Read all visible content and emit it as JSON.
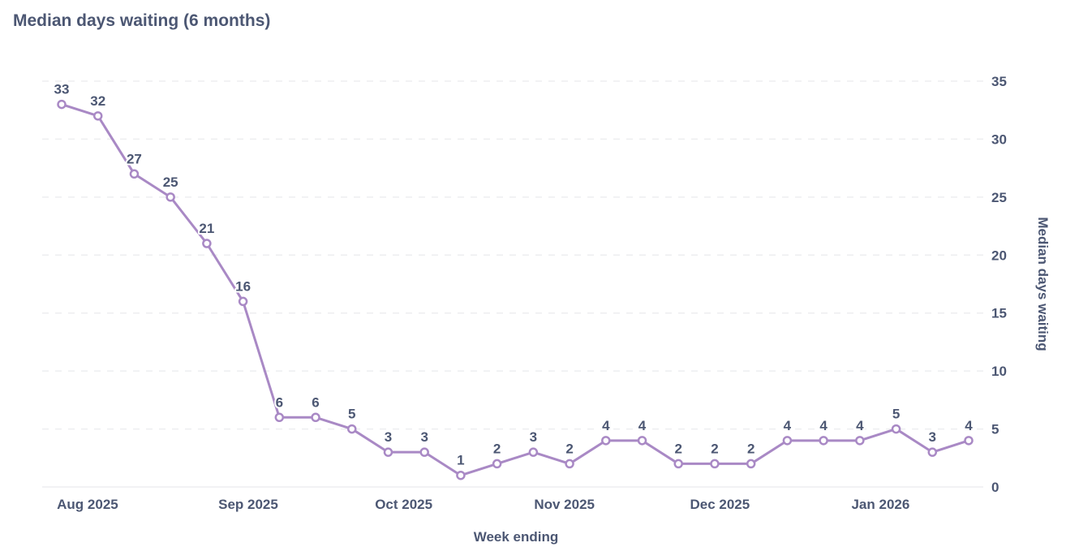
{
  "title": "Median days waiting (6 months)",
  "chart_data": {
    "type": "line",
    "title": "Median days waiting (6 months)",
    "xlabel": "Week ending",
    "ylabel": "Median days waiting",
    "y_axis_side": "right",
    "ylim": [
      0,
      35
    ],
    "yticks": [
      0,
      5,
      10,
      15,
      20,
      25,
      30,
      35
    ],
    "xticks": [
      {
        "date": "2025-08-01",
        "label": "Aug 2025"
      },
      {
        "date": "2025-09-01",
        "label": "Sep 2025"
      },
      {
        "date": "2025-10-01",
        "label": "Oct 2025"
      },
      {
        "date": "2025-11-01",
        "label": "Nov 2025"
      },
      {
        "date": "2025-12-01",
        "label": "Dec 2025"
      },
      {
        "date": "2026-01-01",
        "label": "Jan 2026"
      }
    ],
    "grid": "horizontal dashed",
    "data_labels": true,
    "color": "#A989C5",
    "x": [
      "2025-07-27",
      "2025-08-03",
      "2025-08-10",
      "2025-08-17",
      "2025-08-24",
      "2025-08-31",
      "2025-09-07",
      "2025-09-14",
      "2025-09-21",
      "2025-09-28",
      "2025-10-05",
      "2025-10-12",
      "2025-10-19",
      "2025-10-26",
      "2025-11-02",
      "2025-11-09",
      "2025-11-16",
      "2025-11-23",
      "2025-11-30",
      "2025-12-07",
      "2025-12-14",
      "2025-12-21",
      "2025-12-28",
      "2026-01-04",
      "2026-01-11",
      "2026-01-18"
    ],
    "values": [
      33,
      32,
      27,
      25,
      21,
      16,
      6,
      6,
      5,
      3,
      3,
      1,
      2,
      3,
      2,
      4,
      4,
      2,
      2,
      2,
      4,
      4,
      4,
      5,
      3,
      4
    ]
  }
}
